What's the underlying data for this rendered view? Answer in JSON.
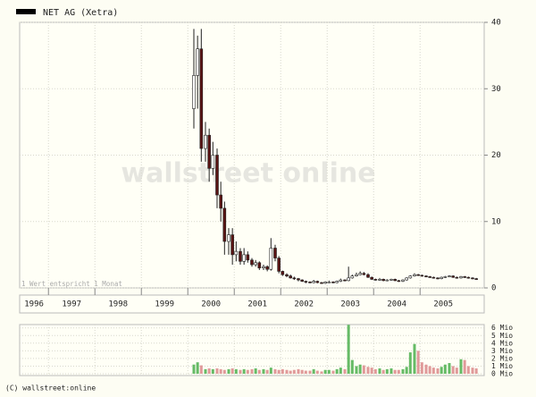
{
  "chart_data": [
    {
      "type": "candlestick",
      "title": "NET AG (Xetra)",
      "watermark": "wallstreet online",
      "note": "1 Wert entspricht 1 Monat",
      "x": [
        2000.13,
        2000.21,
        2000.29,
        2000.38,
        2000.46,
        2000.54,
        2000.63,
        2000.71,
        2000.79,
        2000.88,
        2000.96,
        2001.04,
        2001.13,
        2001.21,
        2001.29,
        2001.38,
        2001.46,
        2001.54,
        2001.63,
        2001.71,
        2001.79,
        2001.88,
        2001.96,
        2002.04,
        2002.13,
        2002.21,
        2002.29,
        2002.38,
        2002.46,
        2002.54,
        2002.63,
        2002.71,
        2002.79,
        2002.88,
        2002.96,
        2003.04,
        2003.13,
        2003.21,
        2003.29,
        2003.38,
        2003.46,
        2003.54,
        2003.63,
        2003.71,
        2003.79,
        2003.88,
        2003.96,
        2004.04,
        2004.13,
        2004.21,
        2004.29,
        2004.38,
        2004.46,
        2004.54,
        2004.63,
        2004.71,
        2004.79,
        2004.88,
        2004.96,
        2005.04,
        2005.13,
        2005.21,
        2005.29,
        2005.38,
        2005.46,
        2005.54,
        2005.63,
        2005.71,
        2005.79,
        2005.88,
        2005.96,
        2006.04,
        2006.13,
        2006.21
      ],
      "open": [
        27,
        32,
        36,
        21,
        23,
        18,
        20,
        14,
        12,
        7,
        8,
        5,
        5.5,
        4,
        5,
        4.2,
        3.5,
        3.8,
        3,
        3.2,
        2.8,
        6,
        4.5,
        2.5,
        2,
        1.8,
        1.5,
        1.4,
        1.2,
        1,
        0.9,
        0.8,
        1,
        0.8,
        0.7,
        0.9,
        0.9,
        0.8,
        1,
        1.2,
        1.1,
        1.5,
        1.8,
        2,
        2.2,
        2,
        1.6,
        1.3,
        1.2,
        1.3,
        1.1,
        1.2,
        1.3,
        1.1,
        1,
        1.2,
        1.5,
        1.8,
        2,
        1.9,
        1.8,
        1.7,
        1.6,
        1.5,
        1.4,
        1.6,
        1.7,
        1.8,
        1.6,
        1.5,
        1.7,
        1.6,
        1.5,
        1.4
      ],
      "high": [
        39,
        38,
        39,
        25,
        24,
        22,
        21,
        16,
        13,
        9,
        9,
        7,
        6,
        6,
        5.5,
        4.5,
        4.2,
        4,
        3.5,
        3.4,
        7.5,
        6.5,
        4.8,
        2.6,
        2.2,
        2,
        1.7,
        1.5,
        1.3,
        1.1,
        1,
        1.2,
        1.1,
        0.9,
        1,
        1.1,
        1,
        1.1,
        1.4,
        1.3,
        3.2,
        2,
        2.3,
        2.5,
        2.4,
        2.2,
        1.7,
        1.4,
        1.5,
        1.4,
        1.3,
        1.4,
        1.4,
        1.2,
        1.3,
        1.6,
        1.9,
        2.2,
        2.1,
        2,
        1.9,
        1.8,
        1.7,
        1.6,
        1.7,
        1.8,
        1.9,
        1.9,
        1.7,
        1.8,
        1.8,
        1.7,
        1.6,
        1.5
      ],
      "low": [
        24,
        27,
        19,
        19,
        16,
        17,
        12,
        10,
        5,
        5,
        3.5,
        4,
        3.5,
        3.5,
        3.8,
        3.2,
        3.2,
        2.7,
        2.7,
        2.5,
        2.6,
        4,
        2.2,
        1.8,
        1.6,
        1.4,
        1.2,
        1,
        0.9,
        0.7,
        0.7,
        0.7,
        0.7,
        0.6,
        0.6,
        0.8,
        0.7,
        0.7,
        0.9,
        1,
        1,
        1.4,
        1.7,
        1.9,
        1.9,
        1.5,
        1.2,
        1.1,
        1.1,
        1,
        1,
        1.1,
        1,
        0.9,
        0.9,
        1.1,
        1.4,
        1.7,
        1.8,
        1.7,
        1.6,
        1.5,
        1.4,
        1.3,
        1.3,
        1.5,
        1.6,
        1.5,
        1.4,
        1.4,
        1.5,
        1.4,
        1.3,
        1.2
      ],
      "close": [
        32,
        36,
        21,
        23,
        18,
        20,
        14,
        12,
        7,
        8,
        5,
        5.5,
        4,
        5,
        4.2,
        3.5,
        3.8,
        3,
        3.2,
        2.8,
        6,
        4.5,
        2.5,
        2,
        1.8,
        1.5,
        1.4,
        1.2,
        1,
        0.9,
        0.8,
        1,
        0.8,
        0.7,
        0.9,
        0.9,
        0.8,
        1,
        1.2,
        1.1,
        1.5,
        1.8,
        2,
        2.2,
        2,
        1.6,
        1.3,
        1.2,
        1.3,
        1.1,
        1.2,
        1.3,
        1.1,
        1,
        1.2,
        1.5,
        1.8,
        2,
        1.9,
        1.8,
        1.7,
        1.6,
        1.5,
        1.4,
        1.6,
        1.7,
        1.8,
        1.6,
        1.5,
        1.7,
        1.6,
        1.5,
        1.4,
        1.3
      ],
      "up_color": "#ffffff",
      "down_color": "#5a1414",
      "xlim": [
        1996.38,
        2006.38
      ],
      "xticks": [
        {
          "value": 1996,
          "label": "1996"
        },
        {
          "value": 1997,
          "label": "1997"
        },
        {
          "value": 1998,
          "label": "1998"
        },
        {
          "value": 1999,
          "label": "1999"
        },
        {
          "value": 2000,
          "label": "2000"
        },
        {
          "value": 2001,
          "label": "2001"
        },
        {
          "value": 2002,
          "label": "2002"
        },
        {
          "value": 2003,
          "label": "2003"
        },
        {
          "value": 2004,
          "label": "2004"
        },
        {
          "value": 2005,
          "label": "2005"
        }
      ],
      "ylim": [
        0,
        40
      ],
      "yticks": [
        0,
        10,
        20,
        30,
        40
      ],
      "grid": true
    },
    {
      "type": "volume",
      "values": [
        1.2,
        1.5,
        1.1,
        0.6,
        0.7,
        0.6,
        0.7,
        0.6,
        0.5,
        0.6,
        0.7,
        0.6,
        0.5,
        0.6,
        0.5,
        0.6,
        0.7,
        0.5,
        0.6,
        0.5,
        0.8,
        0.6,
        0.5,
        0.6,
        0.5,
        0.4,
        0.5,
        0.6,
        0.5,
        0.4,
        0.4,
        0.6,
        0.4,
        0.3,
        0.5,
        0.5,
        0.4,
        0.6,
        0.8,
        0.6,
        6.4,
        1.8,
        1.0,
        1.2,
        1.1,
        0.9,
        0.8,
        0.6,
        0.7,
        0.5,
        0.6,
        0.7,
        0.5,
        0.5,
        0.6,
        0.9,
        2.8,
        3.9,
        3.0,
        1.5,
        1.2,
        1.0,
        0.8,
        0.7,
        0.9,
        1.2,
        1.4,
        1.0,
        0.8,
        1.9,
        1.8,
        1.0,
        0.8,
        0.7
      ],
      "up_color": "#66bb66",
      "down_color": "#e09a9a",
      "ylim": [
        0,
        6.2
      ],
      "yticks": [
        {
          "value": 0,
          "label": "0 Mio"
        },
        {
          "value": 1,
          "label": "1 Mio"
        },
        {
          "value": 2,
          "label": "2 Mio"
        },
        {
          "value": 3,
          "label": "3 Mio"
        },
        {
          "value": 4,
          "label": "4 Mio"
        },
        {
          "value": 5,
          "label": "5 Mio"
        },
        {
          "value": 6,
          "label": "6 Mio"
        }
      ]
    }
  ],
  "footer": "(C) wallstreet:online"
}
